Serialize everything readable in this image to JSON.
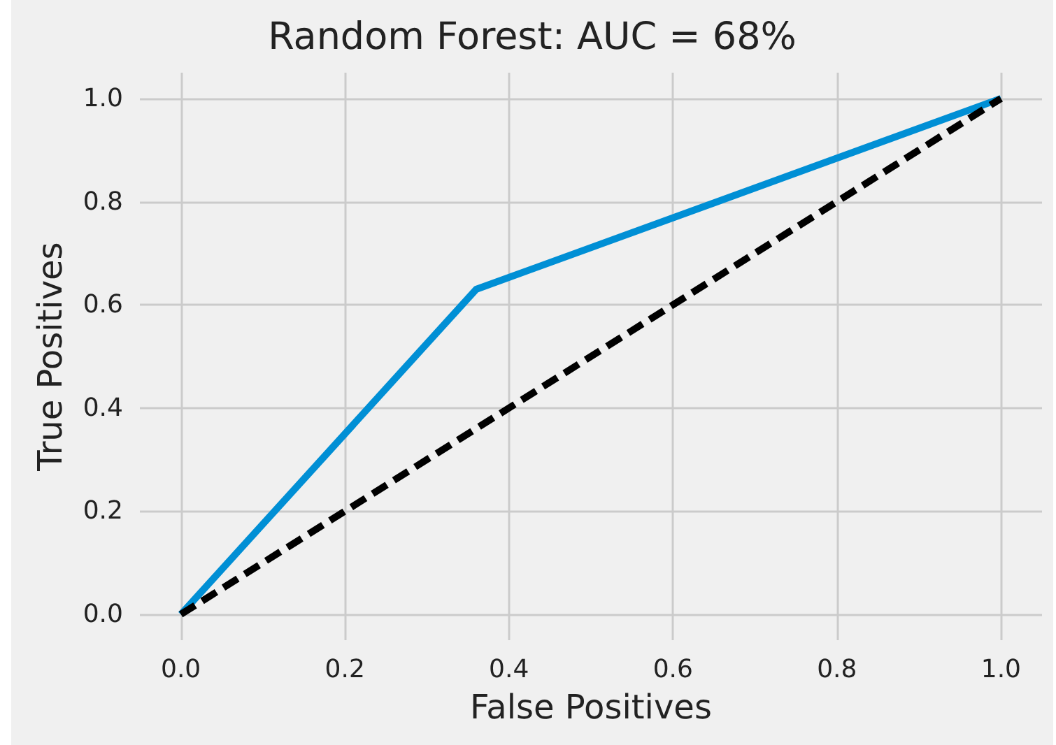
{
  "chart_data": {
    "type": "line",
    "title": "Random Forest: AUC = 68%",
    "xlabel": "False Positives",
    "ylabel": "True Positives",
    "series": [
      {
        "color": "#008fd5",
        "x": [
          0,
          0.36,
          1
        ],
        "values": [
          0,
          0.63,
          1
        ],
        "line_style": "solid"
      },
      {
        "color": "#000000",
        "x": [
          0,
          1
        ],
        "values": [
          0,
          1
        ],
        "line_style": "dashed"
      }
    ],
    "xlim": [
      -0.05,
      1.05
    ],
    "ylim": [
      -0.05,
      1.05
    ],
    "xticks": [
      {
        "value": 0,
        "label": "0.0"
      },
      {
        "value": 0.2,
        "label": "0.2"
      },
      {
        "value": 0.4,
        "label": "0.4"
      },
      {
        "value": 0.6,
        "label": "0.6"
      },
      {
        "value": 0.8,
        "label": "0.8"
      },
      {
        "value": 1,
        "label": "1.0"
      }
    ],
    "yticks": [
      {
        "value": 0,
        "label": "0.0"
      },
      {
        "value": 0.2,
        "label": "0.2"
      },
      {
        "value": 0.4,
        "label": "0.4"
      },
      {
        "value": 0.6,
        "label": "0.6"
      },
      {
        "value": 0.8,
        "label": "0.8"
      },
      {
        "value": 1,
        "label": "1.0"
      }
    ],
    "grid": true,
    "marker": "none"
  }
}
